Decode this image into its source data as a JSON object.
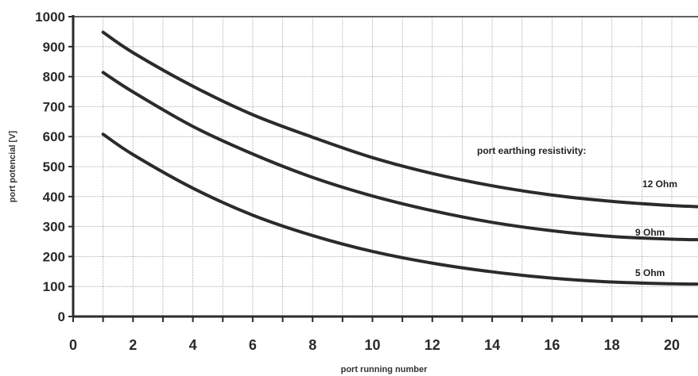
{
  "chart_data": {
    "type": "line",
    "title": "",
    "xlabel": "port running number",
    "ylabel": "port potencial [V]",
    "xlim": [
      0,
      21
    ],
    "ylim": [
      0,
      1000
    ],
    "xticks": [
      0,
      2,
      4,
      6,
      8,
      10,
      12,
      14,
      16,
      18,
      20
    ],
    "yticks": [
      0,
      100,
      200,
      300,
      400,
      500,
      600,
      700,
      800,
      900,
      1000
    ],
    "grid": true,
    "legend": "right",
    "annotation": "port earthing resistivity:",
    "series": [
      {
        "name": "12 Ohm",
        "x": [
          1,
          2,
          4,
          6,
          8,
          10,
          12,
          14,
          16,
          18,
          20,
          21
        ],
        "values": [
          948,
          880,
          768,
          673,
          598,
          530,
          477,
          436,
          405,
          384,
          370,
          366
        ]
      },
      {
        "name": "9 Ohm",
        "x": [
          1,
          2,
          4,
          6,
          8,
          10,
          12,
          14,
          16,
          18,
          20,
          21
        ],
        "values": [
          814,
          749,
          634,
          542,
          464,
          402,
          353,
          314,
          286,
          267,
          258,
          256
        ]
      },
      {
        "name": "5 Ohm",
        "x": [
          1,
          2,
          4,
          6,
          8,
          10,
          12,
          14,
          16,
          18,
          20,
          21
        ],
        "values": [
          608,
          540,
          428,
          338,
          270,
          217,
          178,
          149,
          128,
          115,
          109,
          108
        ]
      }
    ]
  },
  "colors": {
    "line": "#2b2b2b",
    "grid": "#9a9a9a",
    "axis": "#2b2b2b"
  }
}
